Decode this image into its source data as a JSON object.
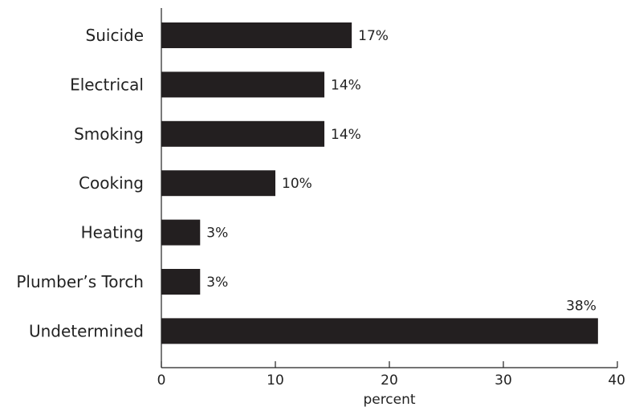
{
  "chart_data": {
    "type": "bar",
    "orientation": "horizontal",
    "categories": [
      "Suicide",
      "Electrical",
      "Smoking",
      "Cooking",
      "Heating",
      "Plumber’s Torch",
      "Undetermined"
    ],
    "values": [
      17,
      14,
      14,
      10,
      3,
      3,
      38
    ],
    "plotted_values": [
      16.7,
      14.3,
      14.3,
      10.0,
      3.4,
      3.4,
      38.3
    ],
    "data_labels": [
      "17%",
      "14%",
      "14%",
      "10%",
      "3%",
      "3%",
      "38%"
    ],
    "title": "",
    "xlabel": "percent",
    "ylabel": "",
    "xlim": [
      0,
      40
    ],
    "xticks": [
      0,
      10,
      20,
      30,
      40
    ],
    "xtick_labels": [
      "0",
      "10",
      "20",
      "30",
      "40"
    ],
    "grid": false,
    "legend": "none",
    "bar_color": "#231f20"
  }
}
